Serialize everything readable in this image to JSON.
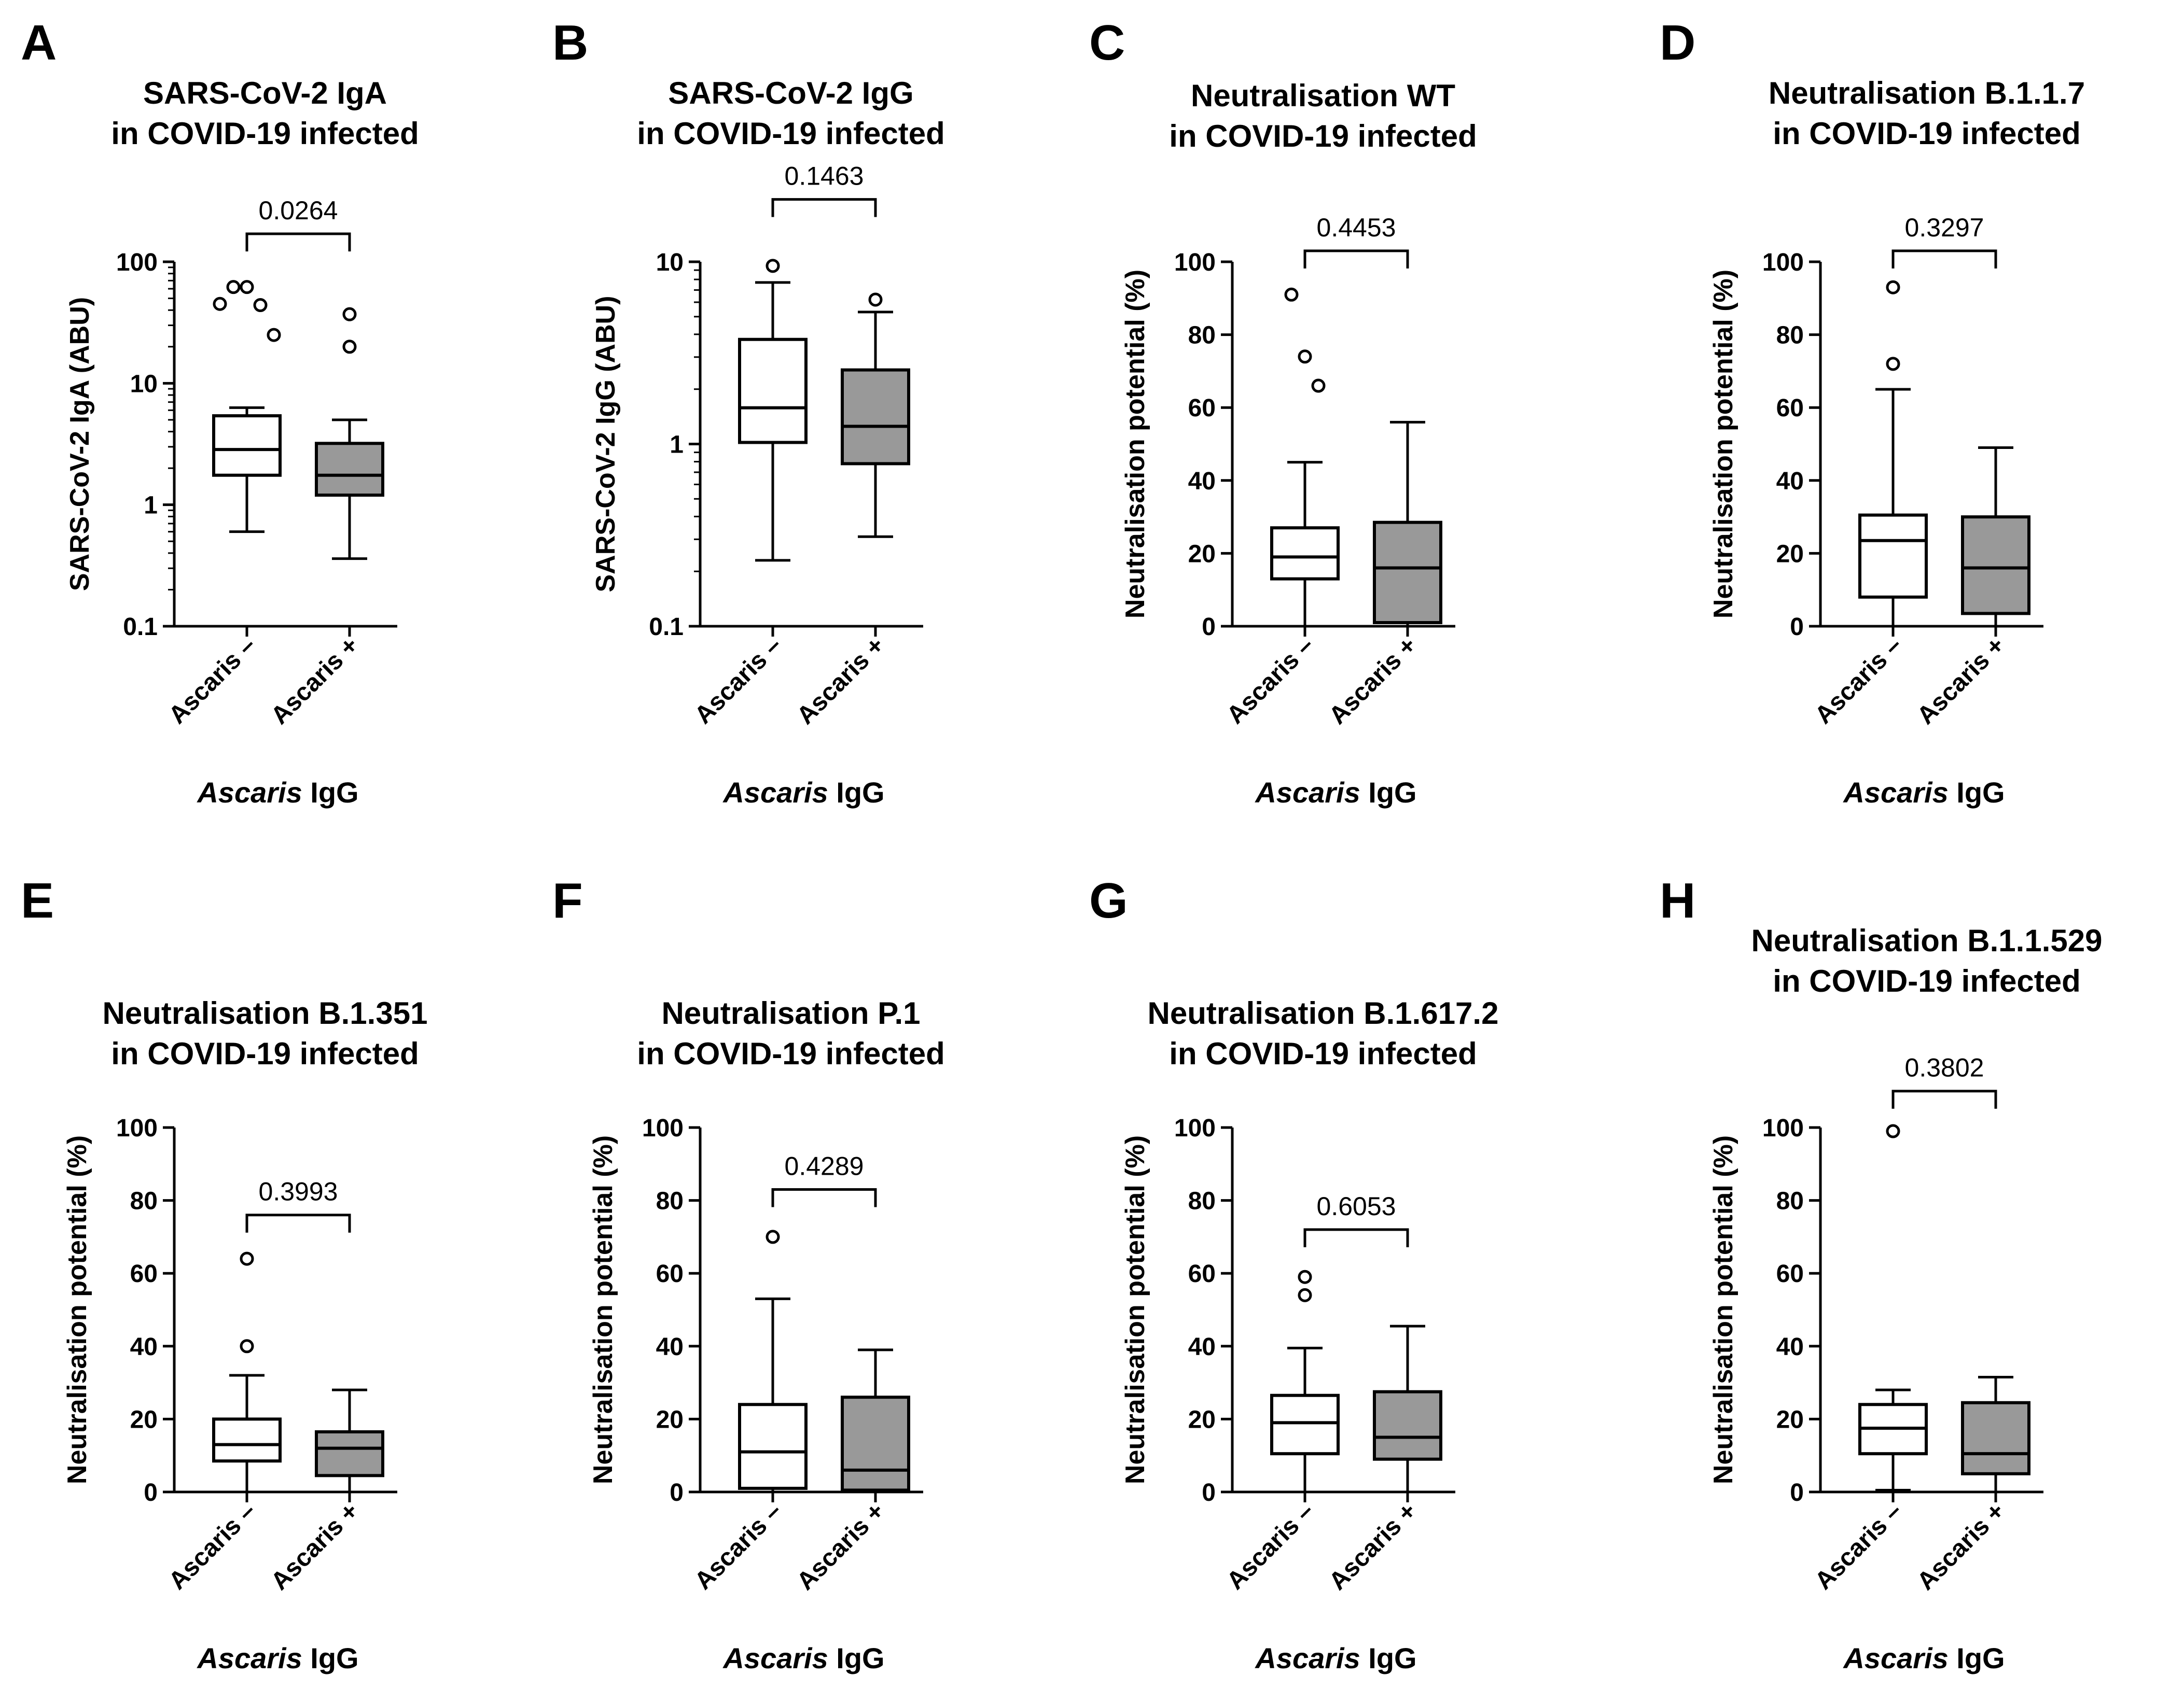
{
  "chart_data": [
    {
      "panel": "A",
      "type": "box",
      "title": [
        "SARS-CoV-2 IgA",
        "in COVID-19 infected"
      ],
      "ylabel": "SARS-CoV-2 IgA (ABU)",
      "xlabel_italic": "Ascaris",
      "xlabel_rest": " IgG",
      "yscale": "log",
      "ylim": [
        0.1,
        100
      ],
      "yticks": [
        0.1,
        1,
        10,
        100
      ],
      "ytick_labels": [
        "0.1",
        "1",
        "10",
        "100"
      ],
      "categories": [
        "Ascaris –",
        "Ascaris +"
      ],
      "boxes": [
        {
          "name": "Ascaris –",
          "fill": "#ffffff",
          "whisker_low": 0.6,
          "q1": 1.75,
          "median": 2.85,
          "q3": 5.4,
          "whisker_high": 6.3,
          "outliers": [
            45,
            62,
            62,
            44,
            25
          ]
        },
        {
          "name": "Ascaris +",
          "fill": "#999999",
          "whisker_low": 0.36,
          "q1": 1.2,
          "median": 1.75,
          "q3": 3.2,
          "whisker_high": 5.0,
          "outliers": [
            37,
            20
          ]
        }
      ],
      "p_value": "0.0264",
      "bracket_y": 170
    },
    {
      "panel": "B",
      "type": "box",
      "title": [
        "SARS-CoV-2 IgG",
        "in COVID-19 infected"
      ],
      "ylabel": "SARS-CoV-2 IgG (ABU)",
      "xlabel_italic": "Ascaris",
      "xlabel_rest": " IgG",
      "yscale": "log",
      "ylim": [
        0.1,
        10
      ],
      "yticks": [
        0.1,
        1,
        10
      ],
      "ytick_labels": [
        "0.1",
        "1",
        "10"
      ],
      "categories": [
        "Ascaris –",
        "Ascaris +"
      ],
      "boxes": [
        {
          "name": "Ascaris –",
          "fill": "#ffffff",
          "whisker_low": 0.23,
          "q1": 1.02,
          "median": 1.58,
          "q3": 3.75,
          "whisker_high": 7.7,
          "outliers": [
            9.5
          ]
        },
        {
          "name": "Ascaris +",
          "fill": "#999999",
          "whisker_low": 0.31,
          "q1": 0.78,
          "median": 1.25,
          "q3": 2.55,
          "whisker_high": 5.3,
          "outliers": [
            6.2
          ]
        }
      ],
      "p_value": "0.1463",
      "bracket_y": 22
    },
    {
      "panel": "C",
      "type": "box",
      "title": [
        "Neutralisation WT",
        "in COVID-19 infected"
      ],
      "ylabel": "Neutralisation potential (%)",
      "xlabel_italic": "Ascaris",
      "xlabel_rest": " IgG",
      "yscale": "linear",
      "ylim": [
        0,
        100
      ],
      "yticks": [
        0,
        20,
        40,
        60,
        80,
        100
      ],
      "ytick_labels": [
        "0",
        "20",
        "40",
        "60",
        "80",
        "100"
      ],
      "categories": [
        "Ascaris –",
        "Ascaris +"
      ],
      "boxes": [
        {
          "name": "Ascaris –",
          "fill": "#ffffff",
          "whisker_low": 0,
          "q1": 13,
          "median": 19,
          "q3": 27,
          "whisker_high": 45,
          "outliers": [
            91,
            74,
            66
          ]
        },
        {
          "name": "Ascaris +",
          "fill": "#999999",
          "whisker_low": 0,
          "q1": 1,
          "median": 16,
          "q3": 28.5,
          "whisker_high": 56,
          "outliers": []
        }
      ],
      "p_value": "0.4453",
      "bracket_y": 103
    },
    {
      "panel": "D",
      "type": "box",
      "title": [
        "Neutralisation B.1.1.7",
        "in COVID-19 infected"
      ],
      "ylabel": "Neutralisation potential (%)",
      "xlabel_italic": "Ascaris",
      "xlabel_rest": " IgG",
      "yscale": "linear",
      "ylim": [
        0,
        100
      ],
      "yticks": [
        0,
        20,
        40,
        60,
        80,
        100
      ],
      "ytick_labels": [
        "0",
        "20",
        "40",
        "60",
        "80",
        "100"
      ],
      "categories": [
        "Ascaris –",
        "Ascaris +"
      ],
      "boxes": [
        {
          "name": "Ascaris –",
          "fill": "#ffffff",
          "whisker_low": 0,
          "q1": 8,
          "median": 23.5,
          "q3": 30.5,
          "whisker_high": 65,
          "outliers": [
            93,
            72
          ]
        },
        {
          "name": "Ascaris +",
          "fill": "#999999",
          "whisker_low": 0,
          "q1": 3.5,
          "median": 16,
          "q3": 30,
          "whisker_high": 49,
          "outliers": []
        }
      ],
      "p_value": "0.3297",
      "bracket_y": 103
    },
    {
      "panel": "E",
      "type": "box",
      "title": [
        "Neutralisation B.1.351",
        "in COVID-19 infected"
      ],
      "ylabel": "Neutralisation potential (%)",
      "xlabel_italic": "Ascaris",
      "xlabel_rest": " IgG",
      "yscale": "linear",
      "ylim": [
        0,
        100
      ],
      "yticks": [
        0,
        20,
        40,
        60,
        80,
        100
      ],
      "ytick_labels": [
        "0",
        "20",
        "40",
        "60",
        "80",
        "100"
      ],
      "categories": [
        "Ascaris –",
        "Ascaris +"
      ],
      "boxes": [
        {
          "name": "Ascaris –",
          "fill": "#ffffff",
          "whisker_low": 0,
          "q1": 8.5,
          "median": 13,
          "q3": 20,
          "whisker_high": 32,
          "outliers": [
            64,
            40
          ]
        },
        {
          "name": "Ascaris +",
          "fill": "#999999",
          "whisker_low": 0,
          "q1": 4.5,
          "median": 12,
          "q3": 16.5,
          "whisker_high": 28,
          "outliers": []
        }
      ],
      "p_value": "0.3993",
      "bracket_y": 76
    },
    {
      "panel": "F",
      "type": "box",
      "title": [
        "Neutralisation P.1",
        "in COVID-19 infected"
      ],
      "ylabel": "Neutralisation potential (%)",
      "xlabel_italic": "Ascaris",
      "xlabel_rest": " IgG",
      "yscale": "linear",
      "ylim": [
        0,
        100
      ],
      "yticks": [
        0,
        20,
        40,
        60,
        80,
        100
      ],
      "ytick_labels": [
        "0",
        "20",
        "40",
        "60",
        "80",
        "100"
      ],
      "categories": [
        "Ascaris –",
        "Ascaris +"
      ],
      "boxes": [
        {
          "name": "Ascaris –",
          "fill": "#ffffff",
          "whisker_low": 0,
          "q1": 1,
          "median": 11,
          "q3": 24,
          "whisker_high": 53,
          "outliers": [
            70
          ]
        },
        {
          "name": "Ascaris +",
          "fill": "#999999",
          "whisker_low": 0,
          "q1": 0.5,
          "median": 6,
          "q3": 26,
          "whisker_high": 39,
          "outliers": []
        }
      ],
      "p_value": "0.4289",
      "bracket_y": 83
    },
    {
      "panel": "G",
      "type": "box",
      "title": [
        "Neutralisation B.1.617.2",
        "in COVID-19 infected"
      ],
      "ylabel": "Neutralisation potential (%)",
      "xlabel_italic": "Ascaris",
      "xlabel_rest": " IgG",
      "yscale": "linear",
      "ylim": [
        0,
        100
      ],
      "yticks": [
        0,
        20,
        40,
        60,
        80,
        100
      ],
      "ytick_labels": [
        "0",
        "20",
        "40",
        "60",
        "80",
        "100"
      ],
      "categories": [
        "Ascaris –",
        "Ascaris +"
      ],
      "boxes": [
        {
          "name": "Ascaris –",
          "fill": "#ffffff",
          "whisker_low": 0,
          "q1": 10.5,
          "median": 19,
          "q3": 26.5,
          "whisker_high": 39.5,
          "outliers": [
            59,
            54
          ]
        },
        {
          "name": "Ascaris +",
          "fill": "#999999",
          "whisker_low": 0,
          "q1": 9,
          "median": 15,
          "q3": 27.5,
          "whisker_high": 45.5,
          "outliers": []
        }
      ],
      "p_value": "0.6053",
      "bracket_y": 72
    },
    {
      "panel": "H",
      "type": "box",
      "title": [
        "Neutralisation B.1.1.529",
        "in COVID-19 infected"
      ],
      "ylabel": "Neutralisation potential (%)",
      "xlabel_italic": "Ascaris",
      "xlabel_rest": " IgG",
      "yscale": "linear",
      "ylim": [
        0,
        100
      ],
      "yticks": [
        0,
        20,
        40,
        60,
        80,
        100
      ],
      "ytick_labels": [
        "0",
        "20",
        "40",
        "60",
        "80",
        "100"
      ],
      "categories": [
        "Ascaris –",
        "Ascaris +"
      ],
      "boxes": [
        {
          "name": "Ascaris –",
          "fill": "#ffffff",
          "whisker_low": 0.5,
          "q1": 10.5,
          "median": 17.5,
          "q3": 24,
          "whisker_high": 28,
          "outliers": [
            99
          ]
        },
        {
          "name": "Ascaris +",
          "fill": "#999999",
          "whisker_low": 0,
          "q1": 5,
          "median": 10.5,
          "q3": 24.5,
          "whisker_high": 31.5,
          "outliers": []
        }
      ],
      "p_value": "0.3802",
      "bracket_y": 110
    }
  ]
}
